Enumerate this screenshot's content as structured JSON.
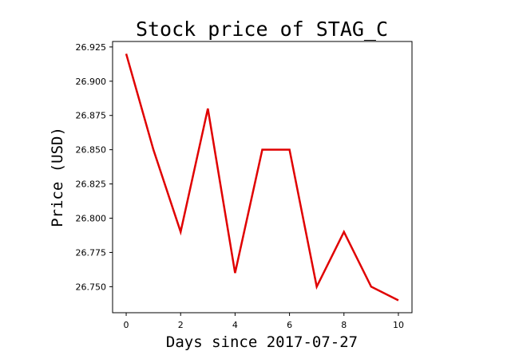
{
  "chart_data": {
    "type": "line",
    "title": "Stock price of STAG_C",
    "xlabel": "Days since 2017-07-27",
    "ylabel": "Price (USD)",
    "x": [
      0,
      1,
      2,
      3,
      4,
      5,
      6,
      7,
      8,
      9,
      10
    ],
    "series": [
      {
        "values": [
          26.92,
          26.85,
          26.79,
          26.88,
          26.76,
          26.85,
          26.85,
          26.75,
          26.79,
          26.75,
          26.74
        ],
        "color": "#e00000"
      }
    ],
    "xticks": [
      "0",
      "2",
      "4",
      "6",
      "8",
      "10"
    ],
    "yticks": [
      "26.750",
      "26.775",
      "26.800",
      "26.825",
      "26.850",
      "26.875",
      "26.900",
      "26.925"
    ],
    "xlim": [
      -0.5,
      10.5
    ],
    "ylim": [
      26.731,
      26.929
    ],
    "grid": false,
    "legend": "none"
  }
}
